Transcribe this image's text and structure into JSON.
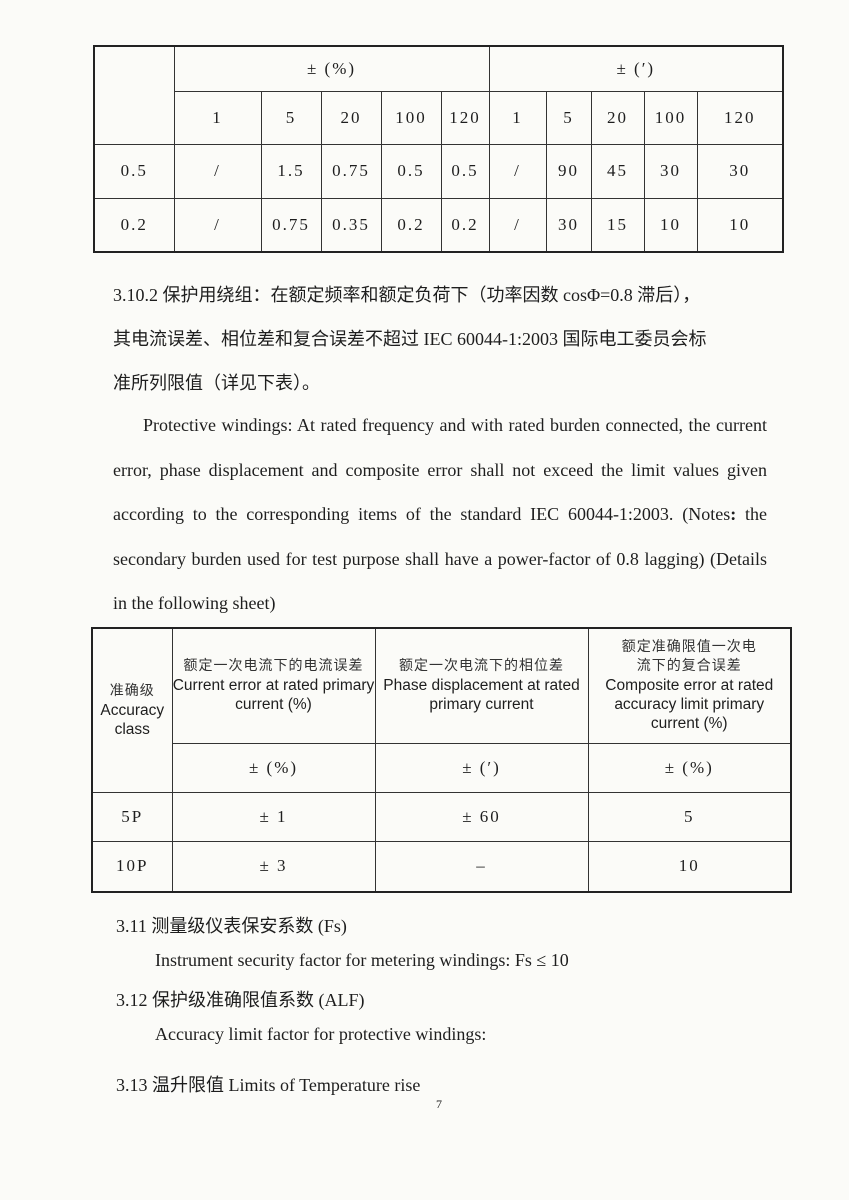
{
  "table1": {
    "group_headers": [
      "± (%)",
      "± (′)"
    ],
    "sub_headers": [
      "1",
      "5",
      "20",
      "100",
      "120",
      "1",
      "5",
      "20",
      "100",
      "120"
    ],
    "rows": [
      {
        "class": "0.5",
        "values": [
          "/",
          "1.5",
          "0.75",
          "0.5",
          "0.5",
          "/",
          "90",
          "45",
          "30",
          "30"
        ]
      },
      {
        "class": "0.2",
        "values": [
          "/",
          "0.75",
          "0.35",
          "0.2",
          "0.2",
          "/",
          "30",
          "15",
          "10",
          "10"
        ]
      }
    ]
  },
  "section_3_10_2": {
    "zh_line1": "3.10.2 保护用绕组：在额定频率和额定负荷下（功率因数 cosΦ=0.8 滞后），",
    "zh_line2": "其电流误差、相位差和复合误差不超过 IEC 60044-1:2003 国际电工委员会标",
    "zh_line3": "准所列限值（详见下表）。",
    "en_lead": "Protective windings:",
    "en_text1": " At rated frequency and with rated burden connected, the current error, phase displacement and composite error shall not exceed the limit values given according to the corresponding items of the standard IEC 60044-1:2003. (Notes",
    "en_colon": ":",
    "en_text2": " the secondary burden used for test purpose shall have a power-factor of 0.8 lagging) (Details in the following sheet)"
  },
  "table2": {
    "headers": [
      {
        "zh": "准确级",
        "en": "Accuracy class"
      },
      {
        "zh": "额定一次电流下的电流误差",
        "en": "Current error at rated primary current (%)"
      },
      {
        "zh": "额定一次电流下的相位差",
        "en": "Phase displacement at rated primary current"
      },
      {
        "zh": "额定准确限值一次电流下的复合误差",
        "en": "Composite error at rated accuracy limit primary current (%)"
      }
    ],
    "units": [
      "± (%)",
      "± (′)",
      "± (%)"
    ],
    "rows": [
      {
        "class": "5P",
        "values": [
          "± 1",
          "± 60",
          "5"
        ]
      },
      {
        "class": "10P",
        "values": [
          "± 3",
          "–",
          "10"
        ]
      }
    ]
  },
  "s3_11": {
    "heading": "3.11  测量级仪表保安系数 (Fs)",
    "text": "Instrument security factor for metering windings: Fs ≤ 10"
  },
  "s3_12": {
    "heading": "3.12  保护级准确限值系数 (ALF)",
    "text": "Accuracy limit factor for protective windings:"
  },
  "s3_13": {
    "heading": "3.13  温升限值 Limits of Temperature rise"
  },
  "page_number": "7"
}
